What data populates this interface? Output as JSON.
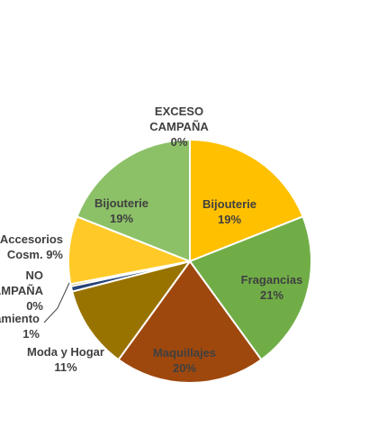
{
  "chart_data": {
    "type": "pie",
    "title": "",
    "slices": [
      {
        "name": "EXCESO CAMPAÑA",
        "label": [
          "EXCESO",
          "CAMPAÑA",
          "0%"
        ],
        "value": 0,
        "color": "#FFC000"
      },
      {
        "name": "Bijouterie",
        "label": [
          "Bijouterie",
          "19%"
        ],
        "value": 19,
        "color": "#FFC000"
      },
      {
        "name": "Fragancias",
        "label": [
          "Fragancias",
          "21%"
        ],
        "value": 21,
        "color": "#70AD47"
      },
      {
        "name": "Maquillajes",
        "label": [
          "Maquillajes",
          "20%"
        ],
        "value": 20,
        "color": "#9E480E"
      },
      {
        "name": "Moda y Hogar",
        "label": [
          "Moda y Hogar",
          "11%"
        ],
        "value": 11,
        "color": "#997300"
      },
      {
        "name": "Tratamiento",
        "label": [
          "amiento",
          "1%"
        ],
        "value": 0.7,
        "color": "#264478"
      },
      {
        "name": "NO CAMPAÑA",
        "label": [
          "NO",
          "AMPAÑA",
          "0%"
        ],
        "value": 0.3,
        "color": "#BF9000"
      },
      {
        "name": "Accesorios Cosm.",
        "label": [
          "Accesorios",
          "Cosm. 9%"
        ],
        "value": 9,
        "color": "#FFCA28"
      },
      {
        "name": "Bijouterie",
        "label": [
          "Bijouterie",
          "19%"
        ],
        "value": 19,
        "color": "#8CC168"
      }
    ],
    "legend": "none"
  }
}
